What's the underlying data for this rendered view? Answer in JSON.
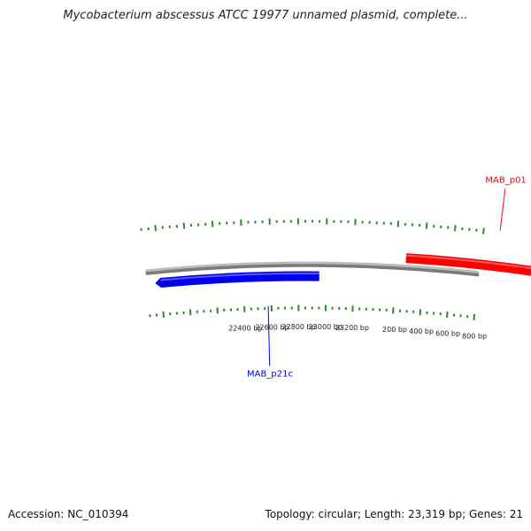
{
  "title": "Mycobacterium abscessus ATCC 19977 unnamed plasmid, complete...",
  "footer": {
    "accession": "Accession: NC_010394",
    "summary": "Topology: circular; Length: 23,319 bp; Genes: 21"
  },
  "colors": {
    "backbone": "#7a7a7a",
    "forward_gene": "#ff0000",
    "reverse_gene": "#0000ee",
    "ticks": "#2a8a2a",
    "tick_label": "#222222"
  },
  "plasmid": {
    "length_bp": 23319,
    "topology": "circular",
    "gene_count": 21
  },
  "genes": [
    {
      "name": "MAB_p01",
      "strand": "forward",
      "start": 250,
      "end": 1200
    },
    {
      "name": "MAB_p21c",
      "strand": "reverse",
      "start": 21800,
      "end": 22950
    }
  ],
  "tick_labels": [
    {
      "bp": 22400,
      "label": "22400 bp"
    },
    {
      "bp": 22600,
      "label": "22600 bp"
    },
    {
      "bp": 22800,
      "label": "22800 bp"
    },
    {
      "bp": 23000,
      "label": "23000 bp"
    },
    {
      "bp": 23200,
      "label": "23200 bp"
    },
    {
      "bp": 200,
      "label": "200 bp"
    },
    {
      "bp": 400,
      "label": "400 bp"
    },
    {
      "bp": 600,
      "label": "600 bp"
    },
    {
      "bp": 800,
      "label": "800 bp"
    }
  ]
}
